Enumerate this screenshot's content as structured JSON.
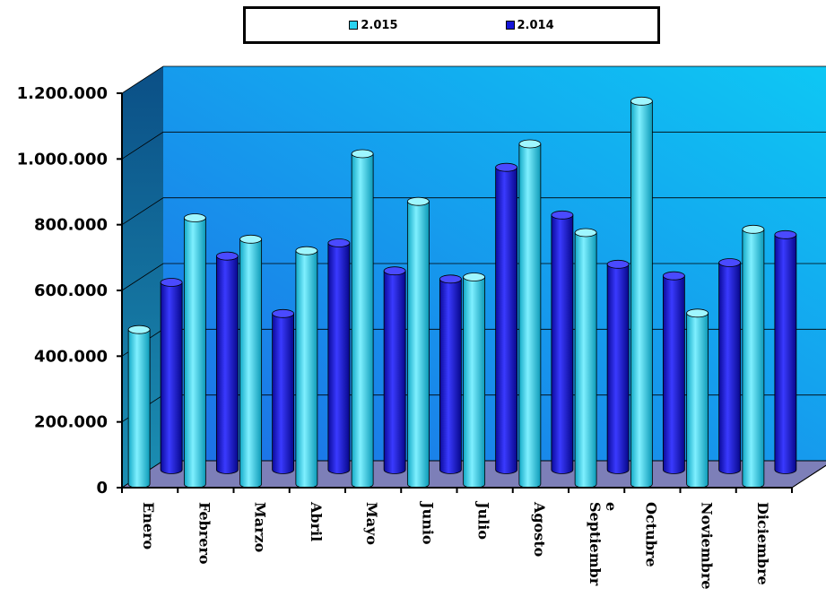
{
  "chart_data": {
    "type": "bar",
    "title": "",
    "xlabel": "",
    "ylabel": "",
    "categories": [
      "Enero",
      "Febrero",
      "Marzo",
      "Abril",
      "Mayo",
      "Junio",
      "Julio",
      "Agosto",
      "Septiembre",
      "Octubre",
      "Noviembre",
      "Diciembre"
    ],
    "x_tick_labels": [
      [
        "Enero"
      ],
      [
        "Febrero"
      ],
      [
        "Marzo"
      ],
      [
        "Abril"
      ],
      [
        "Mayo"
      ],
      [
        "Junio"
      ],
      [
        "Julio"
      ],
      [
        "Agosto"
      ],
      [
        "Septiembr",
        "e"
      ],
      [
        "Octubre"
      ],
      [
        "Noviembre"
      ],
      [
        "Diciembre"
      ]
    ],
    "series": [
      {
        "name": "2.015",
        "color": "#29d3f0",
        "values": [
          470000,
          810000,
          745000,
          710000,
          1005000,
          860000,
          630000,
          1035000,
          765000,
          1165000,
          520000,
          775000
        ]
      },
      {
        "name": "2.014",
        "color": "#1515d8",
        "values": [
          570000,
          650000,
          475000,
          690000,
          605000,
          580000,
          920000,
          775000,
          625000,
          590000,
          630000,
          715000
        ]
      }
    ],
    "ylim": [
      0,
      1200000
    ],
    "yticks": [
      0,
      200000,
      400000,
      600000,
      800000,
      1000000,
      1200000
    ],
    "ytick_labels": [
      "0",
      "200.000",
      "400.000",
      "600.000",
      "800.000",
      "1.000.000",
      "1.200.000"
    ],
    "legend_position": "top-center",
    "grid": true,
    "style": "3d-cylinder"
  }
}
